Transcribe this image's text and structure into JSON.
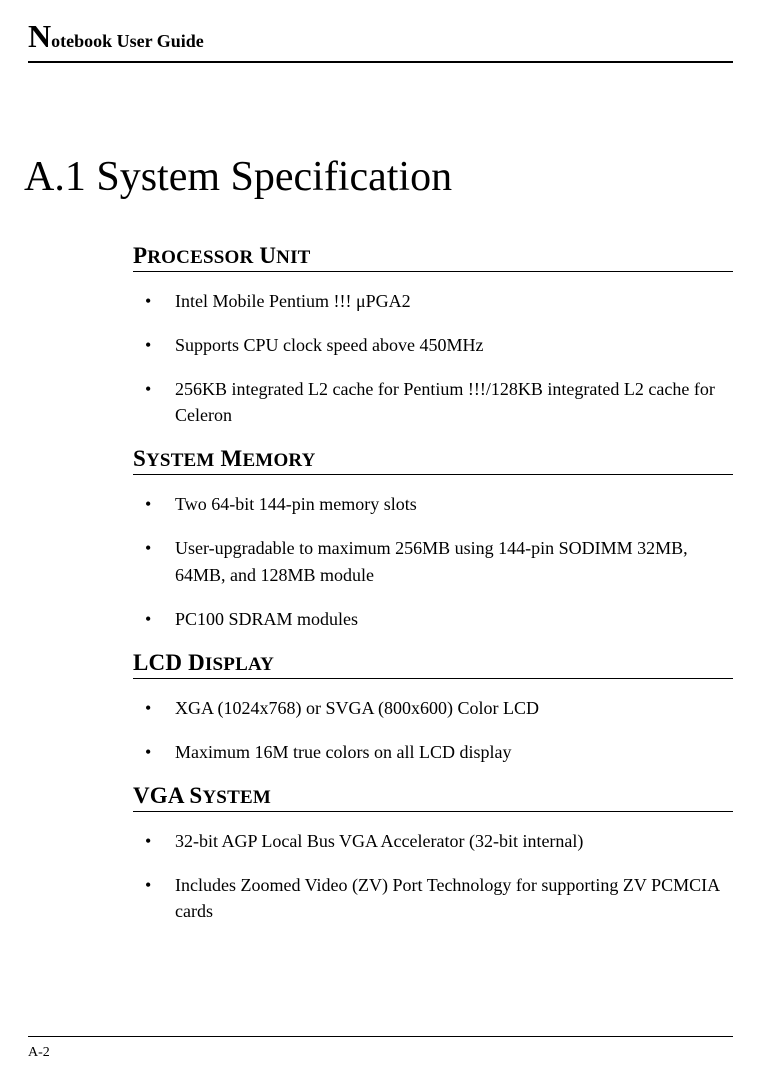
{
  "header": {
    "dropcap": "N",
    "rest": "otebook User Guide"
  },
  "chapter": {
    "title": "A.1 System Specification"
  },
  "sections": [
    {
      "heading_html": "P<span style='font-size:19px'>ROCESSOR</span> U<span style='font-size:19px'>NIT</span>",
      "heading": "Processor Unit",
      "items": [
        "Intel Mobile Pentium !!! μPGA2",
        "Supports CPU clock speed above 450MHz",
        "256KB integrated L2 cache for Pentium !!!/128KB integrated L2 cache for Celeron"
      ]
    },
    {
      "heading_html": "S<span style='font-size:19px'>YSTEM</span> M<span style='font-size:19px'>EMORY</span>",
      "heading": "System Memory",
      "items": [
        "Two 64-bit 144-pin memory slots",
        "User-upgradable to maximum 256MB using 144-pin SODIMM 32MB, 64MB, and 128MB module",
        "PC100 SDRAM modules"
      ]
    },
    {
      "heading_html": "LCD D<span style='font-size:19px'>ISPLAY</span>",
      "heading": "LCD Display",
      "items": [
        "XGA (1024x768) or SVGA (800x600) Color LCD",
        "Maximum 16M true colors on all LCD display"
      ]
    },
    {
      "heading_html": "VGA S<span style='font-size:19px'>YSTEM</span>",
      "heading": "VGA System",
      "items": [
        "32-bit AGP Local Bus VGA Accelerator (32-bit internal)",
        "Includes Zoomed Video (ZV) Port Technology for supporting ZV PCMCIA cards"
      ]
    }
  ],
  "footer": {
    "page": "A-2"
  }
}
